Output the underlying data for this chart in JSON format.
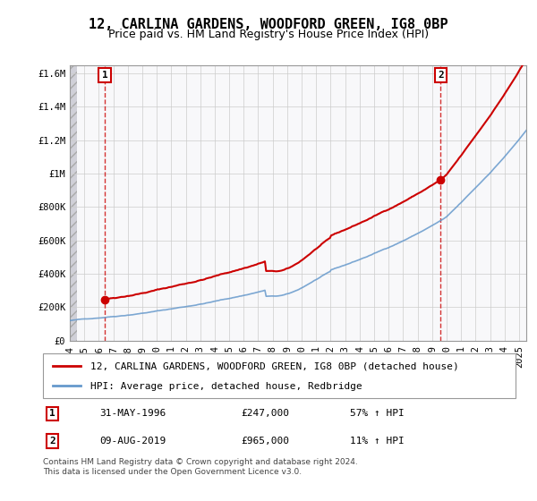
{
  "title": "12, CARLINA GARDENS, WOODFORD GREEN, IG8 0BP",
  "subtitle": "Price paid vs. HM Land Registry's House Price Index (HPI)",
  "xlabel": "",
  "ylabel": "",
  "ylim": [
    0,
    1650000
  ],
  "xlim_start": 1994.0,
  "xlim_end": 2025.5,
  "yticks": [
    0,
    200000,
    400000,
    600000,
    800000,
    1000000,
    1200000,
    1400000,
    1600000
  ],
  "ytick_labels": [
    "£0",
    "£200K",
    "£400K",
    "£600K",
    "£800K",
    "£1M",
    "£1.2M",
    "£1.4M",
    "£1.6M"
  ],
  "xtick_years": [
    1994,
    1995,
    1996,
    1997,
    1998,
    1999,
    2000,
    2001,
    2002,
    2003,
    2004,
    2005,
    2006,
    2007,
    2008,
    2009,
    2010,
    2011,
    2012,
    2013,
    2014,
    2015,
    2016,
    2017,
    2018,
    2019,
    2020,
    2021,
    2022,
    2023,
    2024,
    2025
  ],
  "sale1_x": 1996.42,
  "sale1_y": 247000,
  "sale2_x": 2019.6,
  "sale2_y": 965000,
  "line_color_price": "#cc0000",
  "line_color_hpi": "#6699cc",
  "marker_color": "#cc0000",
  "hatch_color": "#cccccc",
  "bg_hatch": "#e8e8f0",
  "grid_color": "#cccccc",
  "dashed_line_color": "#cc0000",
  "legend_label1": "12, CARLINA GARDENS, WOODFORD GREEN, IG8 0BP (detached house)",
  "legend_label2": "HPI: Average price, detached house, Redbridge",
  "annotation1_label": "1",
  "annotation2_label": "2",
  "table_row1": [
    "1",
    "31-MAY-1996",
    "£247,000",
    "57% ↑ HPI"
  ],
  "table_row2": [
    "2",
    "09-AUG-2019",
    "£965,000",
    "11% ↑ HPI"
  ],
  "footer": "Contains HM Land Registry data © Crown copyright and database right 2024.\nThis data is licensed under the Open Government Licence v3.0.",
  "title_fontsize": 11,
  "subtitle_fontsize": 9,
  "tick_fontsize": 7.5,
  "legend_fontsize": 8,
  "table_fontsize": 8,
  "footer_fontsize": 6.5
}
